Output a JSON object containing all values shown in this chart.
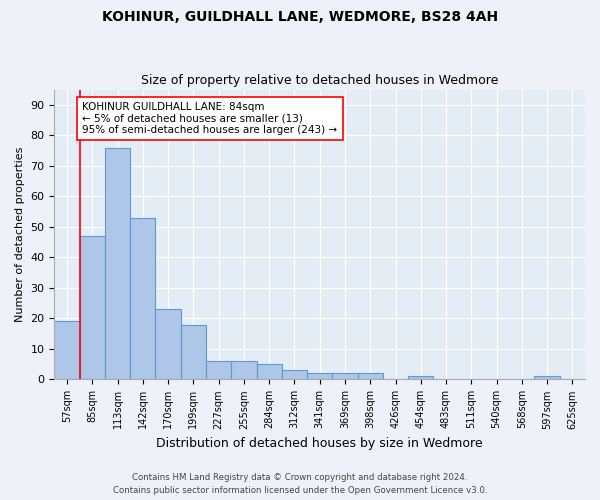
{
  "title1": "KOHINUR, GUILDHALL LANE, WEDMORE, BS28 4AH",
  "title2": "Size of property relative to detached houses in Wedmore",
  "xlabel": "Distribution of detached houses by size in Wedmore",
  "ylabel": "Number of detached properties",
  "categories": [
    "57sqm",
    "85sqm",
    "113sqm",
    "142sqm",
    "170sqm",
    "199sqm",
    "227sqm",
    "255sqm",
    "284sqm",
    "312sqm",
    "341sqm",
    "369sqm",
    "398sqm",
    "426sqm",
    "454sqm",
    "483sqm",
    "511sqm",
    "540sqm",
    "568sqm",
    "597sqm",
    "625sqm"
  ],
  "values": [
    19,
    47,
    76,
    53,
    23,
    18,
    6,
    6,
    5,
    3,
    2,
    2,
    2,
    0,
    1,
    0,
    0,
    0,
    0,
    1,
    0
  ],
  "bar_color": "#aec6e8",
  "bar_edge_color": "#5b9bd5",
  "annotation_text": "KOHINUR GUILDHALL LANE: 84sqm\n← 5% of detached houses are smaller (13)\n95% of semi-detached houses are larger (243) →",
  "annotation_box_color": "white",
  "annotation_box_edge": "red",
  "ylim": [
    0,
    95
  ],
  "yticks": [
    0,
    10,
    20,
    30,
    40,
    50,
    60,
    70,
    80,
    90
  ],
  "footer1": "Contains HM Land Registry data © Crown copyright and database right 2024.",
  "footer2": "Contains public sector information licensed under the Open Government Licence v3.0.",
  "background_color": "#eef2f8",
  "plot_bg_color": "#e4ecf6"
}
